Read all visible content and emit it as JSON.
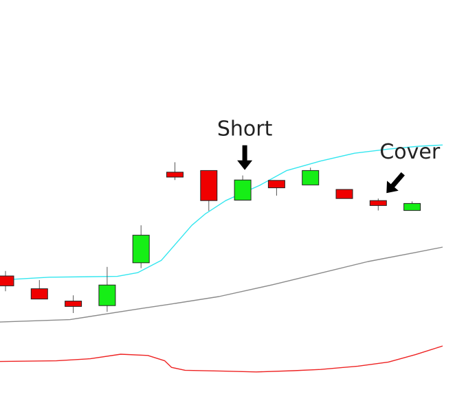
{
  "chart_data": {
    "type": "candlestick",
    "grid": false,
    "legend": "none",
    "colors": {
      "up": "#16ee16",
      "down": "#f00000",
      "outline": "#222222",
      "wick": "#555555",
      "upper_band": "#33e6ef",
      "middle_band": "#8a8a8a",
      "lower_band": "#ee2222",
      "arrow": "#000000"
    },
    "candles": [
      {
        "index": 0,
        "open": 34.0,
        "close": 31.6,
        "high": 35.2,
        "low": 30.3
      },
      {
        "index": 1,
        "open": 30.9,
        "close": 28.4,
        "high": 33.0,
        "low": 28.4
      },
      {
        "index": 2,
        "open": 27.9,
        "close": 26.6,
        "high": 29.3,
        "low": 25.0
      },
      {
        "index": 3,
        "open": 26.8,
        "close": 31.8,
        "high": 36.2,
        "low": 25.3
      },
      {
        "index": 4,
        "open": 37.2,
        "close": 43.9,
        "high": 46.3,
        "low": 35.9
      },
      {
        "index": 5,
        "open": 59.2,
        "close": 58.0,
        "high": 61.6,
        "low": 57.3
      },
      {
        "index": 6,
        "open": 59.6,
        "close": 52.3,
        "high": 59.6,
        "low": 49.8
      },
      {
        "index": 7,
        "open": 52.4,
        "close": 57.3,
        "high": 58.4,
        "low": 52.4
      },
      {
        "index": 8,
        "open": 57.2,
        "close": 55.4,
        "high": 57.2,
        "low": 53.5
      },
      {
        "index": 9,
        "open": 56.1,
        "close": 59.6,
        "high": 60.3,
        "low": 56.1
      },
      {
        "index": 10,
        "open": 55.0,
        "close": 52.8,
        "high": 55.0,
        "low": 52.8
      },
      {
        "index": 11,
        "open": 52.3,
        "close": 51.1,
        "high": 52.8,
        "low": 49.9
      },
      {
        "index": 12,
        "open": 49.9,
        "close": 51.6,
        "high": 52.1,
        "low": 49.9
      }
    ],
    "upper_band": [
      [
        -0.6,
        32.8
      ],
      [
        1.3,
        33.7
      ],
      [
        3.3,
        33.9
      ],
      [
        3.9,
        34.8
      ],
      [
        4.6,
        37.8
      ],
      [
        5.5,
        46.3
      ],
      [
        5.9,
        49.1
      ],
      [
        6.5,
        52.3
      ],
      [
        7.5,
        56.0
      ],
      [
        8.3,
        59.6
      ],
      [
        9.3,
        61.9
      ],
      [
        10.3,
        63.8
      ],
      [
        11.3,
        64.8
      ],
      [
        12.2,
        65.5
      ],
      [
        12.9,
        65.8
      ]
    ],
    "middle_band": [
      [
        -0.6,
        22.7
      ],
      [
        1.9,
        23.4
      ],
      [
        4.0,
        26.1
      ],
      [
        4.9,
        27.2
      ],
      [
        6.3,
        29.0
      ],
      [
        7.9,
        31.9
      ],
      [
        9.3,
        34.7
      ],
      [
        10.7,
        37.5
      ],
      [
        12.1,
        39.7
      ],
      [
        12.9,
        41.0
      ]
    ],
    "lower_band": [
      [
        -0.6,
        13.2
      ],
      [
        1.5,
        13.4
      ],
      [
        2.5,
        13.9
      ],
      [
        3.4,
        15.0
      ],
      [
        4.2,
        14.7
      ],
      [
        4.7,
        13.4
      ],
      [
        4.9,
        11.8
      ],
      [
        5.3,
        11.1
      ],
      [
        6.4,
        10.9
      ],
      [
        7.4,
        10.7
      ],
      [
        8.5,
        11.0
      ],
      [
        9.3,
        11.3
      ],
      [
        10.4,
        12.1
      ],
      [
        11.3,
        13.1
      ],
      [
        12.1,
        14.9
      ],
      [
        12.9,
        17.0
      ]
    ],
    "annotations": [
      {
        "label": "Short",
        "arrow_at_index": 7
      },
      {
        "label": "Cover",
        "arrow_at_index": 11
      }
    ]
  }
}
